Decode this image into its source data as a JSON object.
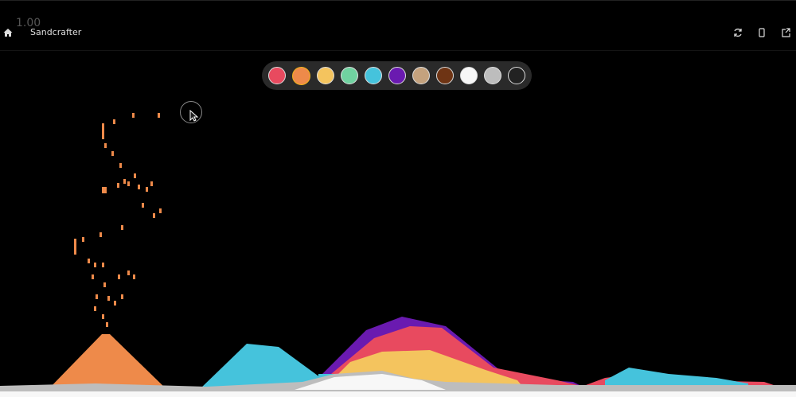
{
  "app": {
    "fps": "1.00",
    "title": "Sandcrafter"
  },
  "icons": {
    "home": "home-icon",
    "reset": "refresh-icon",
    "device": "phone-icon",
    "open": "external-link-icon"
  },
  "palette": {
    "selected_index": 1,
    "colors": [
      "#e84a5f",
      "#ee8a4a",
      "#f4c45e",
      "#70d2a0",
      "#45c3dc",
      "#6a1ab0",
      "#c4a27e",
      "#6e3414",
      "#f7f7f7",
      "#bdbdbd",
      "#222222"
    ]
  }
}
